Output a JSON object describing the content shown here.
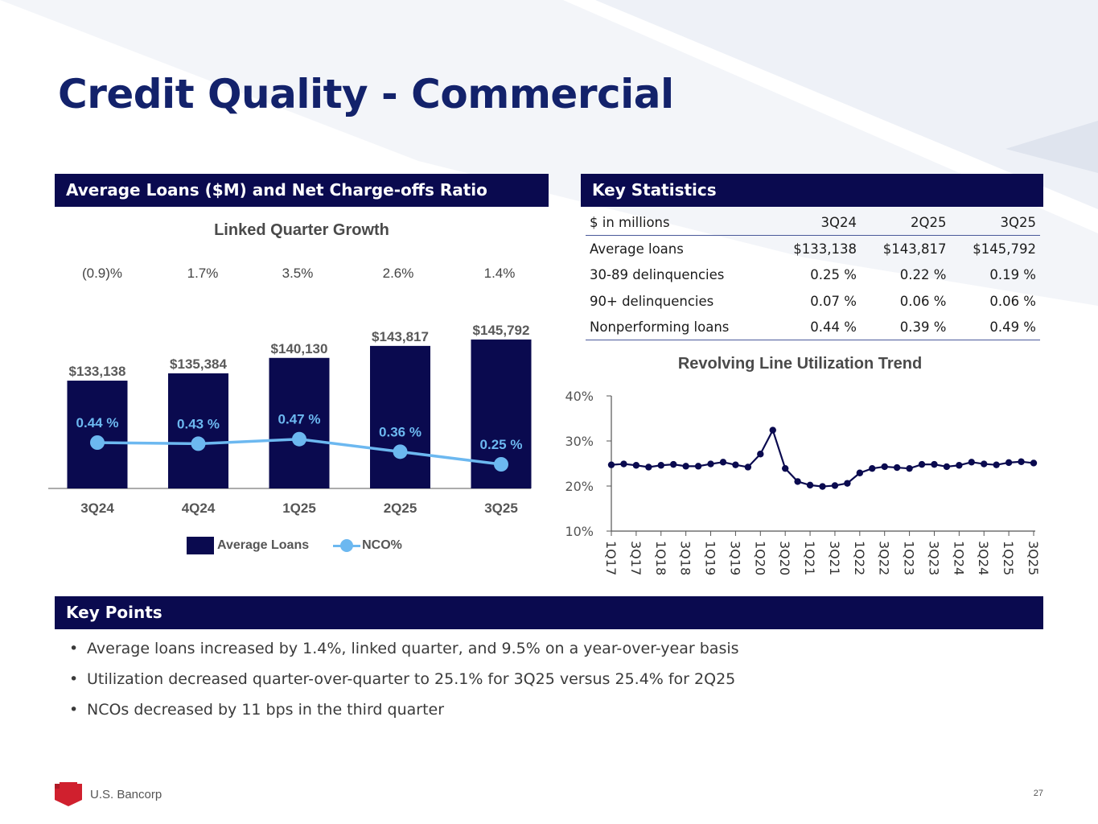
{
  "slide_title": "Credit Quality - Commercial",
  "left_panel": {
    "header": "Average Loans ($M) and Net Charge-offs Ratio",
    "subtitle": "Linked Quarter Growth",
    "growth": [
      "(0.9)%",
      "1.7%",
      "3.5%",
      "2.6%",
      "1.4%"
    ],
    "legend": {
      "bars": "Average Loans",
      "line": "NCO%"
    }
  },
  "right_panel": {
    "header": "Key Statistics",
    "table": {
      "headers": [
        "$ in millions",
        "3Q24",
        "2Q25",
        "3Q25"
      ],
      "rows": [
        [
          "Average loans",
          "$133,138",
          "$143,817",
          "$145,792"
        ],
        [
          "30-89 delinquencies",
          "0.25 %",
          "0.22 %",
          "0.19 %"
        ],
        [
          "90+ delinquencies",
          "0.07 %",
          "0.06 %",
          "0.06 %"
        ],
        [
          "Nonperforming loans",
          "0.44 %",
          "0.39 %",
          "0.49 %"
        ]
      ]
    },
    "chart_subtitle": "Revolving Line Utilization Trend"
  },
  "key_points": {
    "header": "Key Points",
    "items": [
      "Average loans increased by 1.4%, linked quarter, and 9.5% on a year-over-year basis",
      "Utilization decreased quarter-over-quarter to 25.1% for 3Q25 versus 25.4% for 2Q25",
      "NCOs decreased by 11 bps in the third quarter"
    ]
  },
  "footer": {
    "brand": "U.S. Bancorp",
    "page_number": "27"
  },
  "colors": {
    "navy": "#0a0a4f",
    "title_blue": "#13226b",
    "nco_blue": "#6cb8f0",
    "logo_red": "#d0202e"
  },
  "chart_data": [
    {
      "type": "bar",
      "title": "Average Loans ($M) and Net Charge-offs Ratio",
      "categories": [
        "3Q24",
        "4Q24",
        "1Q25",
        "2Q25",
        "3Q25"
      ],
      "series": [
        {
          "name": "Average Loans",
          "kind": "bar",
          "values": [
            133138,
            135384,
            140130,
            143817,
            145792
          ],
          "labels": [
            "$133,138",
            "$135,384",
            "$140,130",
            "$143,817",
            "$145,792"
          ]
        },
        {
          "name": "NCO%",
          "kind": "line",
          "values": [
            0.44,
            0.43,
            0.47,
            0.36,
            0.25
          ],
          "labels": [
            "0.44 %",
            "0.43 %",
            "0.47 %",
            "0.36 %",
            "0.25 %"
          ]
        }
      ]
    },
    {
      "type": "line",
      "title": "Revolving Line Utilization Trend",
      "ylim": [
        10,
        40
      ],
      "yticks": [
        "10%",
        "20%",
        "30%",
        "40%"
      ],
      "ytick_values": [
        10,
        20,
        30,
        40
      ],
      "x_labels": [
        "1Q17",
        "3Q17",
        "1Q18",
        "3Q18",
        "1Q19",
        "3Q19",
        "1Q20",
        "3Q20",
        "1Q21",
        "3Q21",
        "1Q22",
        "3Q22",
        "1Q23",
        "3Q23",
        "1Q24",
        "3Q24",
        "1Q25",
        "3Q25"
      ],
      "x_label_indices": [
        0,
        2,
        4,
        6,
        8,
        10,
        12,
        14,
        16,
        18,
        20,
        22,
        24,
        26,
        28,
        30,
        32,
        34
      ],
      "series": [
        {
          "name": "Utilization",
          "values": [
            24.7,
            24.9,
            24.6,
            24.2,
            24.6,
            24.8,
            24.4,
            24.4,
            24.9,
            25.3,
            24.7,
            24.2,
            27.1,
            32.4,
            23.9,
            21.0,
            20.2,
            19.9,
            20.1,
            20.6,
            22.9,
            23.9,
            24.3,
            24.1,
            23.9,
            24.8,
            24.8,
            24.3,
            24.6,
            25.3,
            24.9,
            24.7,
            25.2,
            25.4,
            25.1
          ]
        }
      ]
    }
  ]
}
